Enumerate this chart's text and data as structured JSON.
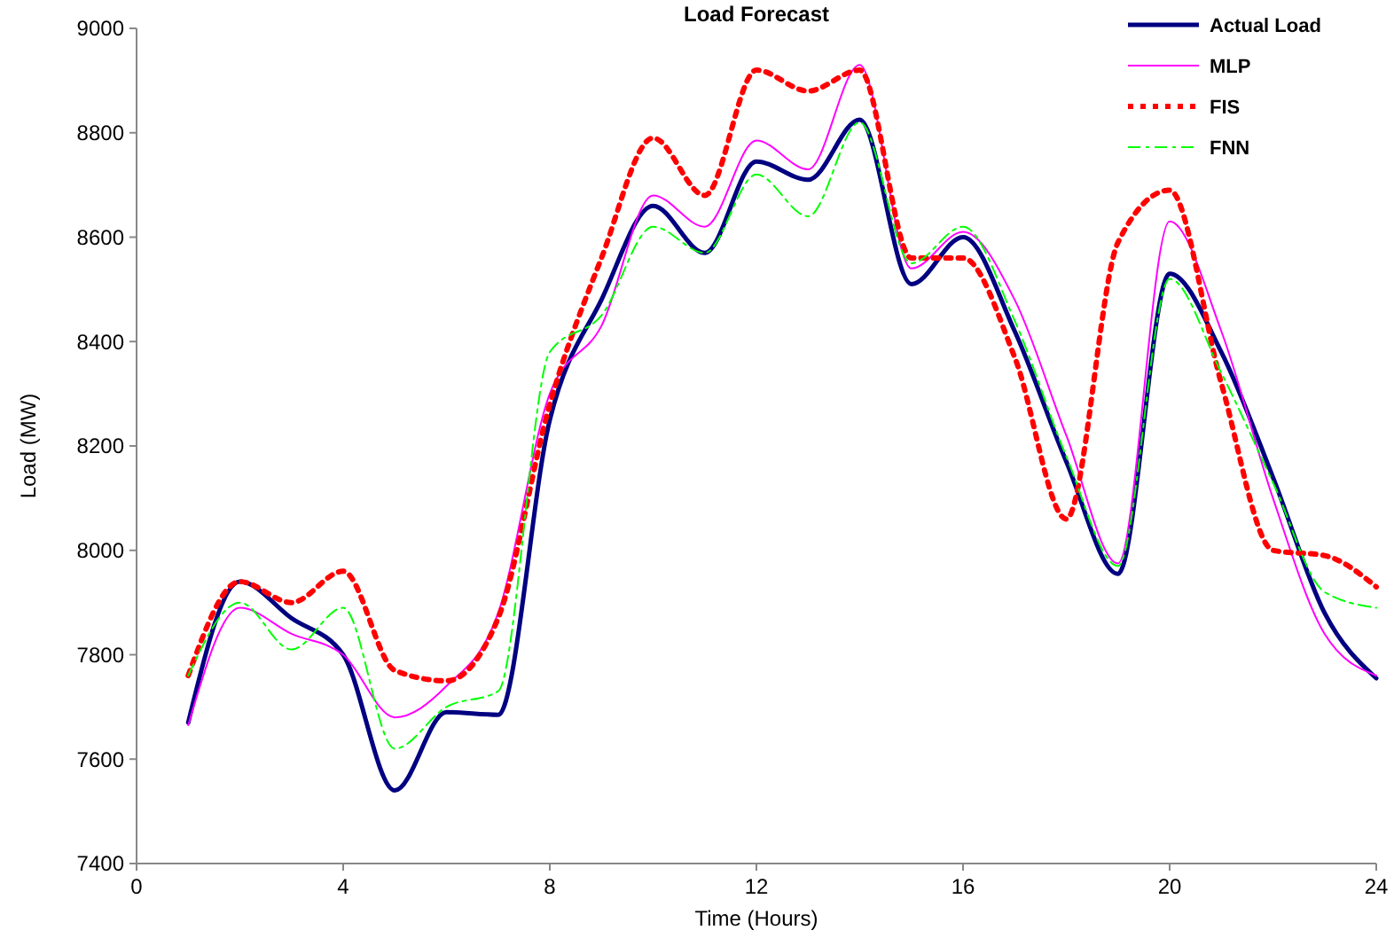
{
  "chart_data": {
    "type": "line",
    "title": "Load Forecast",
    "xlabel": "Time (Hours)",
    "ylabel": "Load (MW)",
    "x": [
      1,
      2,
      3,
      4,
      5,
      6,
      7,
      8,
      9,
      10,
      11,
      12,
      13,
      14,
      15,
      16,
      17,
      18,
      19,
      20,
      21,
      22,
      23,
      24
    ],
    "xlim": [
      0,
      24
    ],
    "xticks": [
      0,
      4,
      8,
      12,
      16,
      20,
      24
    ],
    "ylim": [
      7400,
      9000
    ],
    "yticks": [
      7400,
      7600,
      7800,
      8000,
      8200,
      8400,
      8600,
      8800,
      9000
    ],
    "grid": false,
    "legend": "top right",
    "marker": "none",
    "series": [
      {
        "name": "Actual Load",
        "color": "#000080",
        "line_style": "solid",
        "values": [
          7670,
          7940,
          7870,
          7800,
          7540,
          7690,
          7685,
          8250,
          8480,
          8660,
          8570,
          8745,
          8710,
          8825,
          8510,
          8600,
          8420,
          8170,
          7955,
          8530,
          8380,
          8140,
          7880,
          7755
        ]
      },
      {
        "name": "MLP",
        "color": "#ff00ff",
        "line_style": "solid",
        "values": [
          7665,
          7890,
          7840,
          7800,
          7680,
          7740,
          7880,
          8300,
          8430,
          8680,
          8620,
          8785,
          8730,
          8930,
          8540,
          8610,
          8480,
          8220,
          7975,
          8630,
          8420,
          8100,
          7840,
          7760
        ]
      },
      {
        "name": "FIS",
        "color": "#ff0000",
        "line_style": "dotted",
        "values": [
          7760,
          7940,
          7900,
          7960,
          7770,
          7750,
          7870,
          8280,
          8560,
          8790,
          8680,
          8920,
          8880,
          8920,
          8560,
          8560,
          8370,
          8060,
          8590,
          8690,
          8320,
          8000,
          7990,
          7930
        ]
      },
      {
        "name": "FNN",
        "color": "#00ff00",
        "line_style": "dashed",
        "values": [
          7760,
          7900,
          7810,
          7890,
          7620,
          7700,
          7730,
          8380,
          8450,
          8620,
          8570,
          8720,
          8640,
          8820,
          8550,
          8620,
          8440,
          8180,
          7970,
          8520,
          8340,
          8130,
          7920,
          7890
        ]
      }
    ]
  }
}
